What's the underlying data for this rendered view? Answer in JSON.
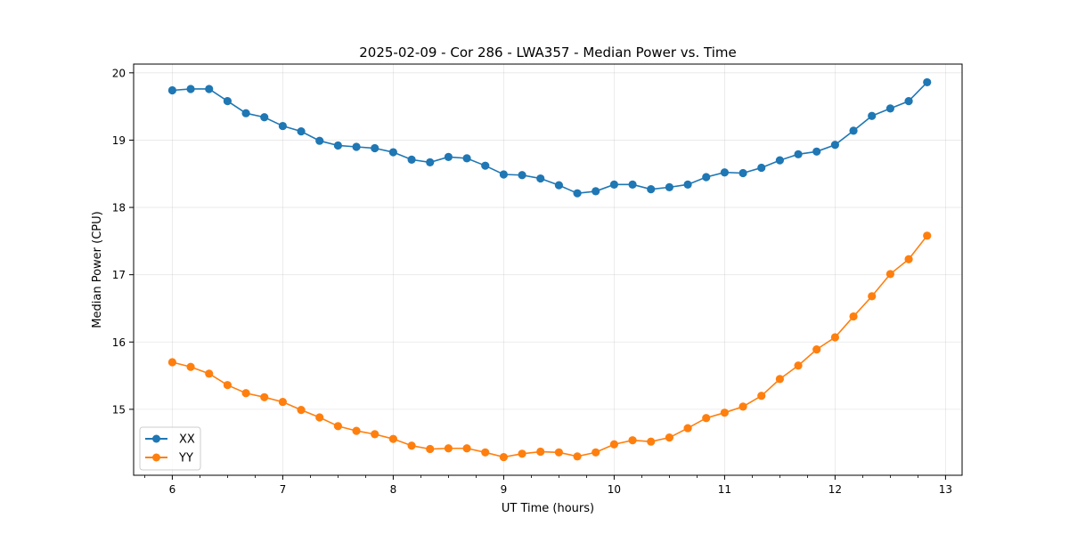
{
  "chart_data": {
    "type": "line",
    "title": "2025-02-09 - Cor 286 - LWA357 - Median Power vs. Time",
    "xlabel": "UT Time (hours)",
    "ylabel": "Median Power (CPU)",
    "xlim": [
      5.65,
      13.15
    ],
    "ylim": [
      14.02,
      20.13
    ],
    "xticks": [
      6,
      7,
      8,
      9,
      10,
      11,
      12,
      13
    ],
    "yticks": [
      15,
      16,
      17,
      18,
      19,
      20
    ],
    "xtick_labels": [
      "6",
      "7",
      "8",
      "9",
      "10",
      "11",
      "12",
      "13"
    ],
    "ytick_labels": [
      "15",
      "16",
      "17",
      "18",
      "19",
      "20"
    ],
    "grid": true,
    "legend_position": "bottom-left",
    "x": [
      6.0,
      6.1667,
      6.3333,
      6.5,
      6.6667,
      6.8333,
      7.0,
      7.1667,
      7.3333,
      7.5,
      7.6667,
      7.8333,
      8.0,
      8.1667,
      8.3333,
      8.5,
      8.6667,
      8.8333,
      9.0,
      9.1667,
      9.3333,
      9.5,
      9.6667,
      9.8333,
      10.0,
      10.1667,
      10.3333,
      10.5,
      10.6667,
      10.8333,
      11.0,
      11.1667,
      11.3333,
      11.5,
      11.6667,
      11.8333,
      12.0,
      12.1667,
      12.3333,
      12.5,
      12.6667,
      12.8333
    ],
    "series": [
      {
        "name": "XX",
        "color": "#1f77b4",
        "values": [
          19.74,
          19.76,
          19.76,
          19.58,
          19.4,
          19.34,
          19.21,
          19.13,
          18.99,
          18.92,
          18.9,
          18.88,
          18.82,
          18.71,
          18.67,
          18.75,
          18.73,
          18.62,
          18.49,
          18.48,
          18.43,
          18.33,
          18.21,
          18.24,
          18.34,
          18.34,
          18.27,
          18.3,
          18.34,
          18.45,
          18.52,
          18.51,
          18.59,
          18.7,
          18.79,
          18.83,
          18.93,
          19.14,
          19.36,
          19.47,
          19.58,
          19.86
        ]
      },
      {
        "name": "YY",
        "color": "#ff7f0e",
        "values": [
          15.7,
          15.63,
          15.53,
          15.36,
          15.24,
          15.18,
          15.11,
          14.99,
          14.88,
          14.75,
          14.68,
          14.63,
          14.56,
          14.46,
          14.41,
          14.42,
          14.42,
          14.36,
          14.29,
          14.34,
          14.37,
          14.36,
          14.3,
          14.36,
          14.48,
          14.54,
          14.52,
          14.58,
          14.72,
          14.87,
          14.95,
          15.04,
          15.2,
          15.45,
          15.65,
          15.89,
          16.07,
          16.38,
          16.68,
          17.01,
          17.23,
          17.58
        ]
      }
    ]
  }
}
